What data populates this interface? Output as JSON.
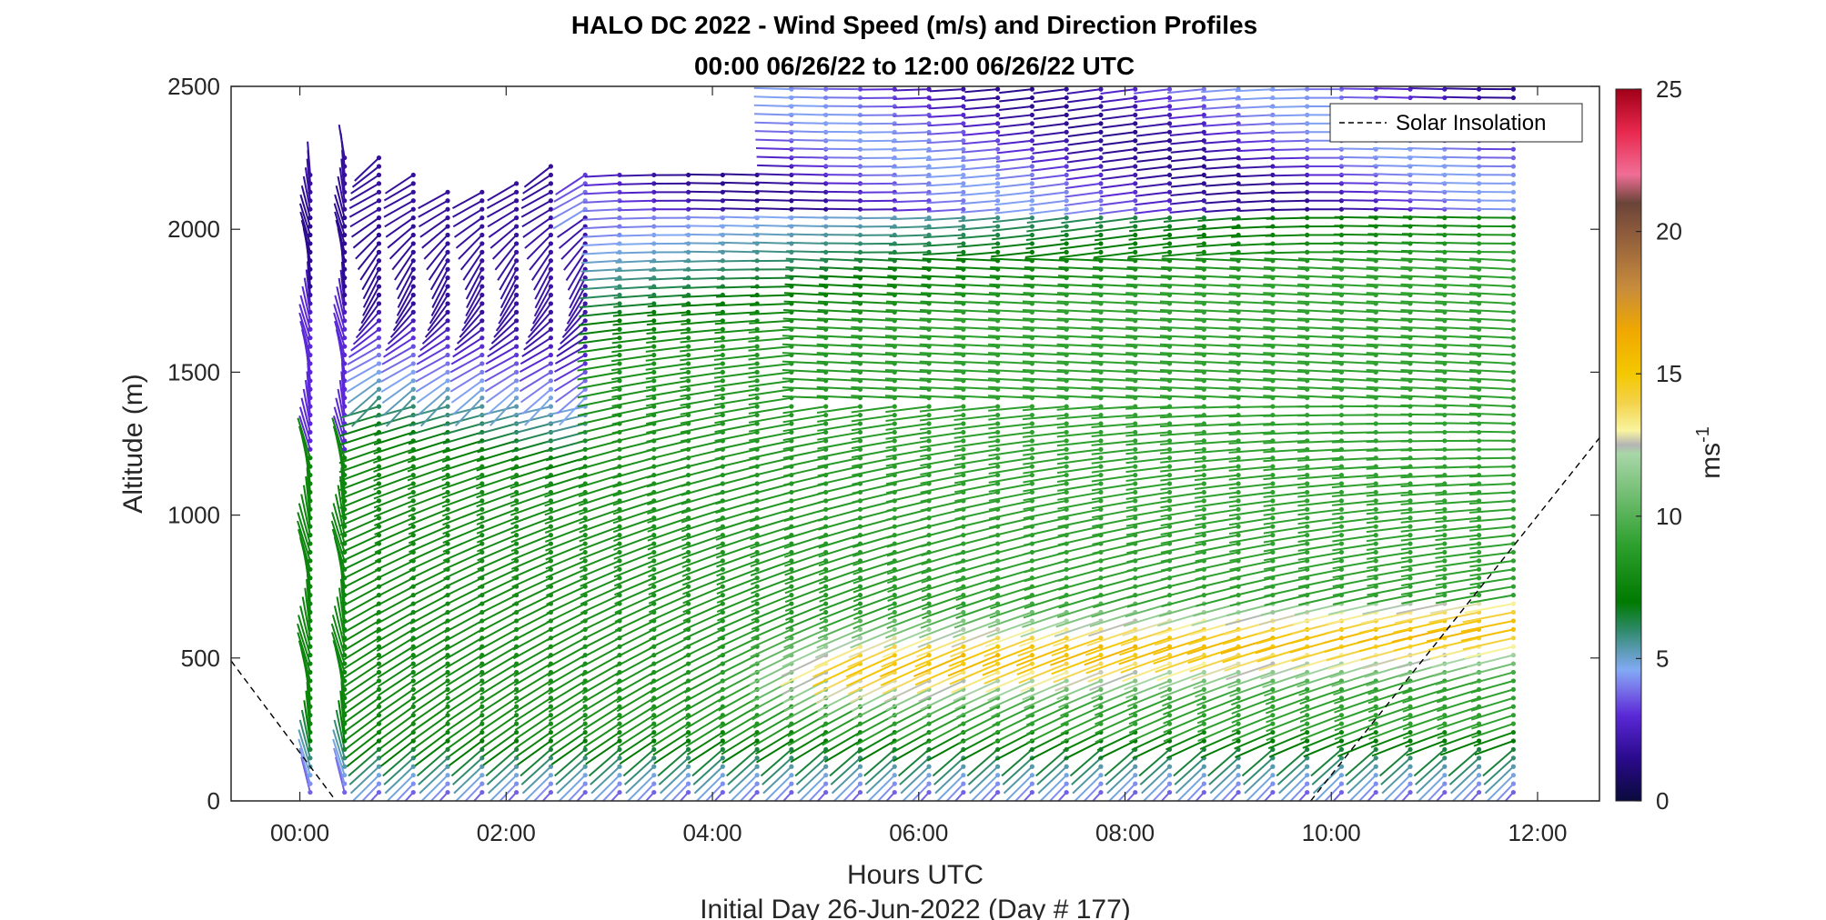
{
  "chart_data": {
    "type": "scatter",
    "subtype": "wind-barb-profile",
    "title": "HALO DC 2022 - Wind Speed (m/s) and Direction Profiles",
    "subtitle": "00:00 06/26/22 to 12:00 06/26/22  UTC",
    "xlabel": "Hours UTC",
    "footer": "Initial Day 26-Jun-2022 (Day # 177)",
    "ylabel": "Altitude (m)",
    "xlim": [
      -0.6667,
      12.6
    ],
    "ylim": [
      0,
      2500
    ],
    "x_ticks": [
      0,
      2,
      4,
      6,
      8,
      10,
      12
    ],
    "x_tick_labels": [
      "00:00",
      "02:00",
      "04:00",
      "06:00",
      "08:00",
      "10:00",
      "12:00"
    ],
    "y_ticks": [
      0,
      500,
      1000,
      1500,
      2000,
      2500
    ],
    "y_tick_labels": [
      "0",
      "500",
      "1000",
      "1500",
      "2000",
      "2500"
    ],
    "colorbar": {
      "label": "ms",
      "label_exponent": "-1",
      "range": [
        0,
        25
      ],
      "ticks": [
        0,
        5,
        10,
        15,
        20,
        25
      ],
      "tick_labels": [
        "0",
        "5",
        "10",
        "15",
        "20",
        "25"
      ],
      "stops": [
        {
          "v": 0,
          "color": "#0a0a3c"
        },
        {
          "v": 1.5,
          "color": "#2a0a8c"
        },
        {
          "v": 3,
          "color": "#5a28d6"
        },
        {
          "v": 4,
          "color": "#7a78ea"
        },
        {
          "v": 4.6,
          "color": "#82aaf5"
        },
        {
          "v": 5.3,
          "color": "#5a9ab2"
        },
        {
          "v": 6,
          "color": "#2e8a6a"
        },
        {
          "v": 7,
          "color": "#007a00"
        },
        {
          "v": 9,
          "color": "#2ea02e"
        },
        {
          "v": 11,
          "color": "#7cc27c"
        },
        {
          "v": 12.2,
          "color": "#a8d6a8"
        },
        {
          "v": 12.5,
          "color": "#b4b4b4"
        },
        {
          "v": 13,
          "color": "#f8f4a0"
        },
        {
          "v": 14,
          "color": "#f4d24a"
        },
        {
          "v": 15,
          "color": "#f4c800"
        },
        {
          "v": 16.5,
          "color": "#f0a800"
        },
        {
          "v": 18,
          "color": "#c88c3c"
        },
        {
          "v": 20,
          "color": "#8c5a3c"
        },
        {
          "v": 21,
          "color": "#6a4438"
        },
        {
          "v": 22,
          "color": "#f06e96"
        },
        {
          "v": 23.5,
          "color": "#e8284e"
        },
        {
          "v": 25,
          "color": "#a00018"
        }
      ]
    },
    "legend": {
      "placement": "top-right",
      "entries": [
        "Solar Insolation"
      ]
    },
    "solar_insolation_line": {
      "style": "dashed",
      "color": "#000000",
      "segments": [
        {
          "x": [
            -0.6667,
            0.35
          ],
          "y": [
            490,
            0
          ]
        },
        {
          "x": [
            9.8,
            12.6
          ],
          "y": [
            0,
            1270
          ]
        }
      ]
    },
    "profiles": {
      "x_first": 0.1,
      "x_step": 0.3333,
      "count": 36,
      "altitude_step_m": 30,
      "altitude_min_m": 30,
      "altitude_max_m": 2500
    }
  }
}
